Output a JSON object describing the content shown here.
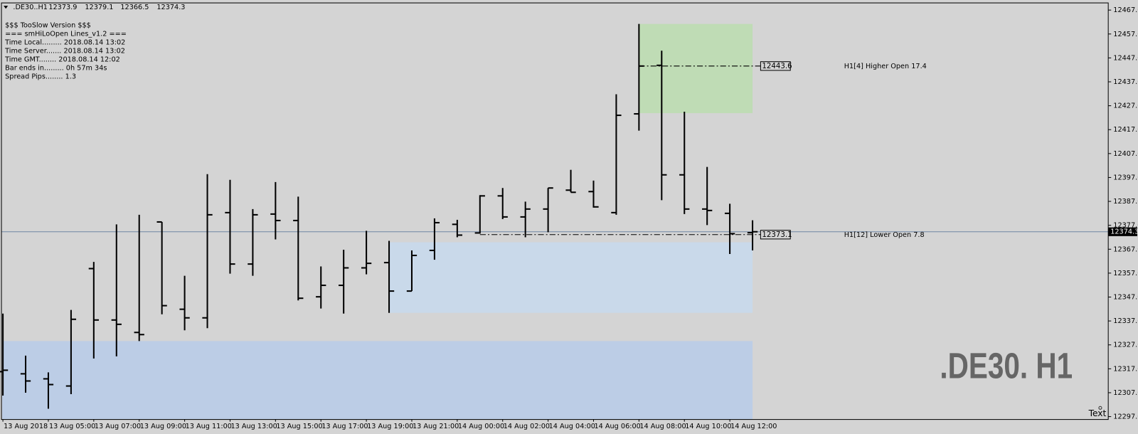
{
  "chart_data": {
    "type": "ohlc",
    "symbol": ".DE30..H1",
    "header_ohlc": [
      12373.9,
      12379.1,
      12366.5,
      12374.3
    ],
    "info_lines": [
      "$$$ TooSlow Version $$$",
      "=== smHiLoOpen Lines_v1.2 ===",
      "Time Local......... 2018.08.14 13:02",
      "Time Server....... 2018.08.14 13:02",
      "Time GMT........ 2018.08.14 12:02",
      "Bar ends in......... 0h 57m 34s",
      "Spread Pips........ 1.3"
    ],
    "watermark": ".DE30. H1",
    "corner_text": "Text",
    "categories": [
      "13 Aug 2018",
      null,
      "13 Aug 05:00",
      null,
      "13 Aug 07:00",
      null,
      "13 Aug 09:00",
      null,
      "13 Aug 11:00",
      null,
      "13 Aug 13:00",
      null,
      "13 Aug 15:00",
      null,
      "13 Aug 17:00",
      null,
      "13 Aug 19:00",
      null,
      "13 Aug 21:00",
      null,
      "14 Aug 00:00",
      null,
      "14 Aug 02:00",
      null,
      "14 Aug 04:00",
      null,
      "14 Aug 06:00",
      null,
      "14 Aug 08:00",
      null,
      "14 Aug 10:00",
      null,
      "14 Aug 12:00",
      null
    ],
    "open": [
      12315.8,
      12314.9,
      12312.8,
      12309.8,
      12358.9,
      12337.4,
      12332.2,
      12378.4,
      12341.9,
      12338.3,
      12382.3,
      12360.8,
      12381.7,
      12379.0,
      12347.1,
      12351.9,
      12359.2,
      12361.4,
      12349.5,
      12366.5,
      12377.4,
      12373.8,
      12389.3,
      12380.5,
      12383.8,
      12391.7,
      12391.1,
      12382.3,
      12423.6,
      12443.9,
      12398.1,
      12383.8,
      12382.0,
      12373.9
    ],
    "high": [
      12340.1,
      12322.5,
      12315.5,
      12341.6,
      12361.7,
      12377.4,
      12381.4,
      12378.4,
      12355.9,
      12398.4,
      12396.0,
      12383.8,
      12395.1,
      12389.0,
      12359.8,
      12366.8,
      12374.7,
      12370.5,
      12366.5,
      12379.9,
      12379.3,
      12389.6,
      12392.6,
      12386.9,
      12392.6,
      12400.2,
      12395.7,
      12431.8,
      12461.2,
      12450.0,
      12424.5,
      12401.4,
      12386.0,
      12379.1
    ],
    "low": [
      12305.8,
      12307.0,
      12300.3,
      12306.4,
      12321.3,
      12322.2,
      12328.6,
      12339.8,
      12333.1,
      12334.0,
      12356.8,
      12355.9,
      12371.1,
      12345.6,
      12342.2,
      12340.1,
      12356.5,
      12340.4,
      12349.5,
      12362.6,
      12372.0,
      12373.5,
      12379.6,
      12372.0,
      12374.1,
      12390.8,
      12384.4,
      12381.4,
      12416.6,
      12387.5,
      12381.7,
      12377.1,
      12365.0,
      12366.5
    ],
    "close": [
      12316.4,
      12311.9,
      12310.4,
      12337.7,
      12337.4,
      12335.6,
      12331.3,
      12343.4,
      12338.3,
      12381.4,
      12360.8,
      12381.4,
      12379.0,
      12346.5,
      12351.9,
      12359.2,
      12361.1,
      12349.5,
      12364.4,
      12378.1,
      12372.9,
      12389.3,
      12380.5,
      12383.8,
      12392.6,
      12390.8,
      12384.7,
      12423.0,
      12443.6,
      12398.1,
      12383.8,
      12383.2,
      12373.5,
      12374.3
    ],
    "color": "#000000",
    "ylim": [
      12295.8,
      12470.0
    ],
    "yticks": [
      {
        "value": 12297,
        "label": "12297.0"
      },
      {
        "value": 12307,
        "label": "12307.0"
      },
      {
        "value": 12317,
        "label": "12317.0"
      },
      {
        "value": 12327,
        "label": "12327.0"
      },
      {
        "value": 12337,
        "label": "12337.0"
      },
      {
        "value": 12347,
        "label": "12347.0"
      },
      {
        "value": 12357,
        "label": "12357.0"
      },
      {
        "value": 12367,
        "label": "12367.0"
      },
      {
        "value": 12377,
        "label": "12377.0"
      },
      {
        "value": 12387,
        "label": "12387.0"
      },
      {
        "value": 12397,
        "label": "12397.0"
      },
      {
        "value": 12407,
        "label": "12407.0"
      },
      {
        "value": 12417,
        "label": "12417.0"
      },
      {
        "value": 12427,
        "label": "12427.0"
      },
      {
        "value": 12437,
        "label": "12437.0"
      },
      {
        "value": 12447,
        "label": "12447.0"
      },
      {
        "value": 12457,
        "label": "12457.0"
      },
      {
        "value": 12467,
        "label": "12467.0"
      }
    ],
    "grid": false,
    "current_price": 12374.3,
    "current_price_color": "#6f86a3",
    "zones": [
      {
        "top": 12461.2,
        "bottom": 12423.9,
        "color": "#bfdcb5"
      },
      {
        "top": 12369.9,
        "bottom": 12340.4,
        "color": "#c9d9ea"
      },
      {
        "top": 12328.6,
        "bottom": 12295.8,
        "color": "#bccde6"
      }
    ],
    "levels": [
      {
        "value": 12443.6,
        "text": "H1[4] Higher Open 17.4"
      },
      {
        "value": 12373.1,
        "text": "H1[12] Lower Open 7.8"
      }
    ]
  }
}
